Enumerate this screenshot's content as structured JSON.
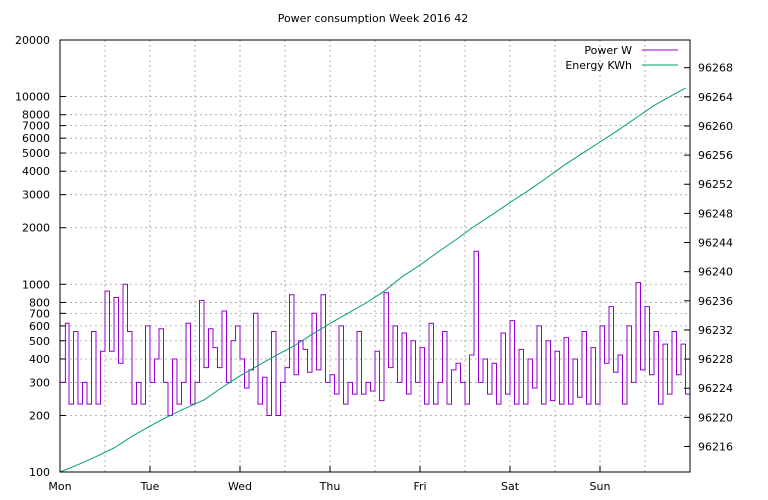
{
  "chart_data": {
    "type": "line",
    "title": "Power consumption Week 2016 42",
    "x_categories": [
      "Mon",
      "Tue",
      "Wed",
      "Thu",
      "Fri",
      "Sat",
      "Sun"
    ],
    "y_left": {
      "scale": "log",
      "range": [
        100,
        20000
      ],
      "ticks": [
        100,
        200,
        300,
        400,
        500,
        600,
        700,
        800,
        1000,
        2000,
        3000,
        4000,
        5000,
        6000,
        7000,
        8000,
        10000,
        20000
      ],
      "tick_labels": [
        "100",
        "200",
        "300",
        "400",
        "500",
        "600",
        "700",
        "800",
        "1000",
        "2000",
        "3000",
        "4000",
        "5000",
        "6000",
        "7000",
        "8000",
        "10000",
        "20000"
      ]
    },
    "y_right": {
      "scale": "linear",
      "range": [
        96212.5,
        96271.8
      ],
      "ticks": [
        96216,
        96220,
        96224,
        96228,
        96232,
        96236,
        96240,
        96244,
        96248,
        96252,
        96256,
        96260,
        96264,
        96268
      ],
      "tick_labels": [
        "96216",
        "96220",
        "96224",
        "96228",
        "96232",
        "96236",
        "96240",
        "96244",
        "96248",
        "96252",
        "96256",
        "96260",
        "96264",
        "96268"
      ]
    },
    "grid": true,
    "legend_position": "top-right",
    "series": [
      {
        "name": "Power W",
        "axis": "left",
        "color": "#9400d3",
        "x": [
          0.0,
          0.06,
          0.1,
          0.15,
          0.2,
          0.25,
          0.3,
          0.35,
          0.4,
          0.45,
          0.5,
          0.55,
          0.6,
          0.65,
          0.7,
          0.75,
          0.8,
          0.85,
          0.9,
          0.95,
          1.0,
          1.05,
          1.1,
          1.15,
          1.2,
          1.25,
          1.3,
          1.35,
          1.4,
          1.45,
          1.5,
          1.55,
          1.6,
          1.65,
          1.7,
          1.75,
          1.8,
          1.85,
          1.9,
          1.95,
          2.0,
          2.05,
          2.1,
          2.15,
          2.2,
          2.25,
          2.3,
          2.35,
          2.4,
          2.45,
          2.5,
          2.55,
          2.6,
          2.65,
          2.7,
          2.75,
          2.8,
          2.85,
          2.9,
          2.95,
          3.0,
          3.05,
          3.1,
          3.15,
          3.2,
          3.25,
          3.3,
          3.35,
          3.4,
          3.45,
          3.5,
          3.55,
          3.6,
          3.65,
          3.7,
          3.75,
          3.8,
          3.85,
          3.9,
          3.95,
          4.0,
          4.05,
          4.1,
          4.15,
          4.2,
          4.25,
          4.3,
          4.35,
          4.4,
          4.45,
          4.5,
          4.55,
          4.6,
          4.65,
          4.7,
          4.75,
          4.8,
          4.85,
          4.9,
          4.95,
          5.0,
          5.05,
          5.1,
          5.15,
          5.2,
          5.25,
          5.3,
          5.35,
          5.4,
          5.45,
          5.5,
          5.55,
          5.6,
          5.65,
          5.7,
          5.75,
          5.8,
          5.85,
          5.9,
          5.95,
          6.0,
          6.05,
          6.1,
          6.15,
          6.2,
          6.25,
          6.3,
          6.35,
          6.4,
          6.45,
          6.5,
          6.55,
          6.6,
          6.65,
          6.7,
          6.75,
          6.8,
          6.85,
          6.9,
          6.95
        ],
        "values": [
          300,
          620,
          230,
          560,
          230,
          300,
          230,
          560,
          230,
          440,
          920,
          440,
          850,
          380,
          1000,
          560,
          230,
          300,
          230,
          600,
          300,
          400,
          580,
          300,
          200,
          400,
          230,
          300,
          620,
          230,
          300,
          820,
          360,
          580,
          460,
          360,
          720,
          300,
          500,
          600,
          400,
          280,
          350,
          700,
          230,
          320,
          200,
          560,
          200,
          300,
          360,
          880,
          330,
          500,
          450,
          340,
          700,
          350,
          880,
          300,
          330,
          260,
          600,
          230,
          300,
          260,
          560,
          260,
          300,
          270,
          440,
          240,
          900,
          360,
          600,
          300,
          550,
          260,
          500,
          300,
          460,
          230,
          620,
          230,
          300,
          560,
          230,
          350,
          380,
          300,
          230,
          420,
          1500,
          300,
          400,
          260,
          380,
          230,
          550,
          260,
          640,
          230,
          450,
          230,
          400,
          280,
          600,
          230,
          500,
          240,
          440,
          230,
          520,
          230,
          400,
          250,
          560,
          230,
          460,
          230,
          600,
          380,
          760,
          340,
          420,
          230,
          600,
          300,
          1020,
          350,
          760,
          330,
          560,
          230,
          480,
          260,
          560,
          330,
          480,
          260
        ]
      },
      {
        "name": "Energy KWh",
        "axis": "right",
        "color": "#009e73",
        "x": [
          0.0,
          0.2,
          0.4,
          0.6,
          0.8,
          1.0,
          1.2,
          1.4,
          1.6,
          1.8,
          2.0,
          2.2,
          2.4,
          2.6,
          2.8,
          3.0,
          3.2,
          3.4,
          3.6,
          3.8,
          4.0,
          4.2,
          4.4,
          4.6,
          4.8,
          5.0,
          5.2,
          5.4,
          5.6,
          5.8,
          6.0,
          6.2,
          6.4,
          6.6,
          6.8,
          6.95
        ],
        "values": [
          96212.5,
          96213.5,
          96214.6,
          96215.8,
          96217.4,
          96218.8,
          96220.1,
          96221.3,
          96222.4,
          96224.1,
          96225.7,
          96227.1,
          96228.5,
          96229.8,
          96231.4,
          96232.9,
          96234.3,
          96235.7,
          96237.3,
          96239.3,
          96240.9,
          96242.7,
          96244.4,
          96246.2,
          96247.8,
          96249.5,
          96251.1,
          96252.8,
          96254.6,
          96256.2,
          96257.8,
          96259.4,
          96261.1,
          96262.8,
          96264.2,
          96265.2
        ]
      }
    ]
  }
}
